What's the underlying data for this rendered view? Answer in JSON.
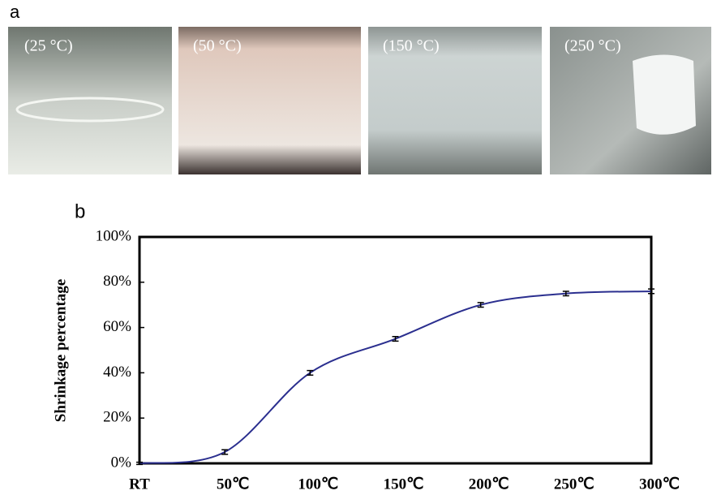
{
  "panel_a": {
    "label": "a",
    "photos": [
      "(25 °C)",
      "(50 °C)",
      "(150 °C)",
      "(250 °C)"
    ]
  },
  "panel_b": {
    "label": "b"
  },
  "chart_data": {
    "type": "line",
    "y_label": "Shrinkage percentage",
    "categories": [
      "RT",
      "50℃",
      "100℃",
      "150℃",
      "200℃",
      "250℃",
      "300℃"
    ],
    "series": [
      {
        "color": "#2b2f8f",
        "values": [
          0,
          5,
          40,
          55,
          70,
          75,
          76
        ],
        "errors": [
          0.5,
          1,
          1,
          1,
          1,
          1,
          1
        ]
      }
    ],
    "ylim": [
      0,
      100
    ],
    "yticks": [
      {
        "value": 0,
        "label": "0%"
      },
      {
        "value": 20,
        "label": "20%"
      },
      {
        "value": 40,
        "label": "40%"
      },
      {
        "value": 60,
        "label": "60%"
      },
      {
        "value": 80,
        "label": "80%"
      },
      {
        "value": 100,
        "label": "100%"
      }
    ]
  }
}
